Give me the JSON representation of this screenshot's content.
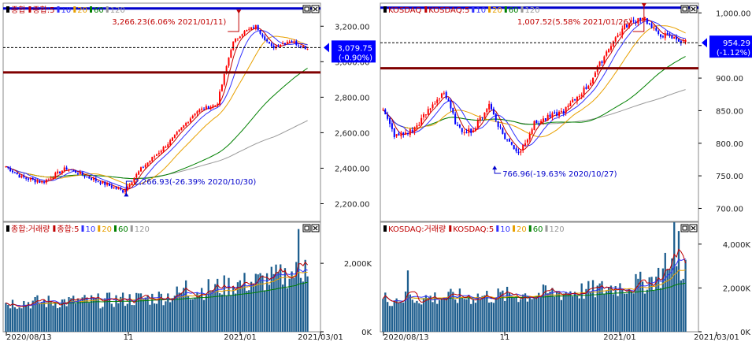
{
  "panels": [
    {
      "id": "kospi",
      "price_legend": {
        "name": "종합",
        "ma_prefix": "종합:5",
        "ma": [
          "10",
          "20",
          "60",
          "120"
        ]
      },
      "volume_legend": {
        "name": "종합:거래량",
        "ma_prefix": "종합:5",
        "ma": [
          "10",
          "20",
          "60",
          "120"
        ]
      },
      "y_ticks": [
        "3,200.00",
        "3,000.00",
        "2,800.00",
        "2,600.00",
        "2,400.00",
        "2,200.00"
      ],
      "vol_ticks": [
        "2,000K",
        "0K"
      ],
      "x_ticks": [
        "2020/08/13",
        "11",
        "2021/01",
        "2021/03/01"
      ],
      "current_price": "3,079.75",
      "current_change": "(-0.90%)",
      "high_label": "3,266.23(6.06% 2021/01/11)",
      "low_label": "2,266.93(-26.39% 2020/10/30)"
    },
    {
      "id": "kosdaq",
      "price_legend": {
        "name": "KOSDAQ",
        "ma_prefix": "KOSDAQ:5",
        "ma": [
          "10",
          "20",
          "60",
          "120"
        ]
      },
      "volume_legend": {
        "name": "KOSDAQ:거래량",
        "ma_prefix": "KOSDAQ:5",
        "ma": [
          "10",
          "20",
          "60",
          "120"
        ]
      },
      "y_ticks": [
        "1,000.00",
        "950.00",
        "900.00",
        "850.00",
        "800.00",
        "750.00",
        "700.00"
      ],
      "vol_ticks": [
        "4,000K",
        "2,000K",
        "0K"
      ],
      "x_ticks": [
        "2020/08/13",
        "11",
        "2021/01",
        "2021/03/01"
      ],
      "current_price": "954.29",
      "current_change": "(-1.12%)",
      "high_label": "1,007.52(5.58% 2021/01/26)",
      "low_label": "766.96(-19.63% 2020/10/27)"
    }
  ],
  "colors": {
    "up": "#ff0000",
    "down": "#0000ff",
    "ma5": "#c00000",
    "ma10": "#3030ff",
    "ma20": "#e8a000",
    "ma60": "#008000",
    "ma120": "#999999",
    "volume": "#1f5f8f",
    "high_line": "#0000cc",
    "low_line": "#800000",
    "price_tag": "#0000ff"
  },
  "chart_data": [
    {
      "type": "line",
      "title": "종합 (daily candlestick)",
      "ylim": [
        2100,
        3330
      ],
      "series": [
        {
          "name": "종합",
          "x": [
            "2020/08/13",
            "2020/09",
            "2020/10/30",
            "2020/11",
            "2020/12",
            "2021/01/11",
            "2021/02",
            "2021/03/01"
          ],
          "values": [
            2400,
            2330,
            2266.93,
            2500,
            2750,
            3266.23,
            3100,
            3079.75
          ]
        }
      ],
      "annotations": [
        "3,266.23(6.06% 2021/01/11)",
        "2,266.93(-26.39% 2020/10/30)"
      ],
      "horizontal_lines": [
        3300,
        2940
      ]
    },
    {
      "type": "bar",
      "title": "종합:거래량",
      "ylim": [
        0,
        3200
      ],
      "y_unit": "K",
      "series": [
        {
          "name": "종합:거래량",
          "x": [
            "2020/08/13",
            "2020/11",
            "2021/01",
            "2021/03/01"
          ],
          "values": [
            900,
            1000,
            1400,
            3000
          ]
        }
      ]
    },
    {
      "type": "line",
      "title": "KOSDAQ (daily candlestick)",
      "ylim": [
        680,
        1015
      ],
      "series": [
        {
          "name": "KOSDAQ",
          "x": [
            "2020/08/13",
            "2020/09",
            "2020/10/27",
            "2020/11",
            "2020/12",
            "2021/01/26",
            "2021/02",
            "2021/03/01"
          ],
          "values": [
            850,
            830,
            766.96,
            830,
            920,
            1007.52,
            970,
            954.29
          ]
        }
      ],
      "annotations": [
        "1,007.52(5.58% 2021/01/26)",
        "766.96(-19.63% 2020/10/27)"
      ],
      "horizontal_lines": [
        1008,
        915
      ]
    },
    {
      "type": "bar",
      "title": "KOSDAQ:거래량",
      "ylim": [
        0,
        5000
      ],
      "y_unit": "K",
      "series": [
        {
          "name": "KOSDAQ:거래량",
          "x": [
            "2020/08/13",
            "2020/11",
            "2021/01",
            "2021/03/01"
          ],
          "values": [
            1500,
            1700,
            2000,
            4500
          ]
        }
      ]
    }
  ]
}
